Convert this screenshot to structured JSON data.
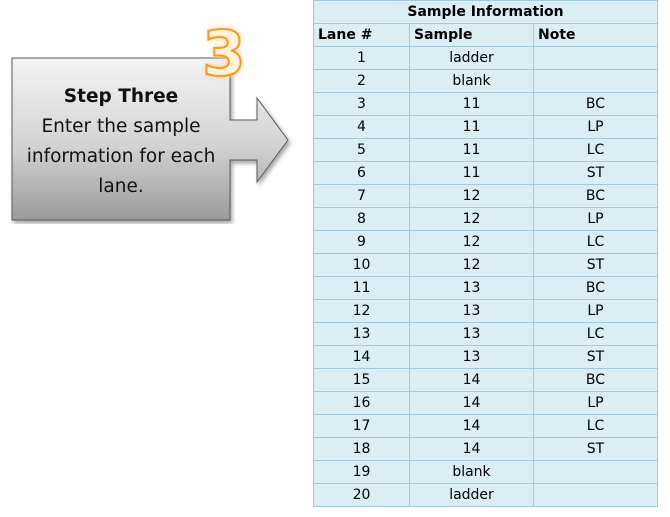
{
  "callout": {
    "step_number": "3",
    "title": "Step Three",
    "body": "Enter the sample information for each lane."
  },
  "table": {
    "title": "Sample Information",
    "headers": {
      "lane": "Lane #",
      "sample": "Sample",
      "note": "Note"
    },
    "rows": [
      {
        "lane": "1",
        "sample": "ladder",
        "note": ""
      },
      {
        "lane": "2",
        "sample": "blank",
        "note": ""
      },
      {
        "lane": "3",
        "sample": "11",
        "note": "BC"
      },
      {
        "lane": "4",
        "sample": "11",
        "note": "LP"
      },
      {
        "lane": "5",
        "sample": "11",
        "note": "LC"
      },
      {
        "lane": "6",
        "sample": "11",
        "note": "ST"
      },
      {
        "lane": "7",
        "sample": "12",
        "note": "BC"
      },
      {
        "lane": "8",
        "sample": "12",
        "note": "LP"
      },
      {
        "lane": "9",
        "sample": "12",
        "note": "LC"
      },
      {
        "lane": "10",
        "sample": "12",
        "note": "ST"
      },
      {
        "lane": "11",
        "sample": "13",
        "note": "BC"
      },
      {
        "lane": "12",
        "sample": "13",
        "note": "LP"
      },
      {
        "lane": "13",
        "sample": "13",
        "note": "LC"
      },
      {
        "lane": "14",
        "sample": "13",
        "note": "ST"
      },
      {
        "lane": "15",
        "sample": "14",
        "note": "BC"
      },
      {
        "lane": "16",
        "sample": "14",
        "note": "LP"
      },
      {
        "lane": "17",
        "sample": "14",
        "note": "LC"
      },
      {
        "lane": "18",
        "sample": "14",
        "note": "ST"
      },
      {
        "lane": "19",
        "sample": "blank",
        "note": ""
      },
      {
        "lane": "20",
        "sample": "ladder",
        "note": ""
      }
    ]
  },
  "colors": {
    "cell_fill": "#daeef3",
    "cell_border": "#a6c9d9",
    "callout_gradient_light": "#f4f4f4",
    "callout_gradient_dark": "#9a9a9a",
    "step_number_outline": "#ef9a2a"
  }
}
